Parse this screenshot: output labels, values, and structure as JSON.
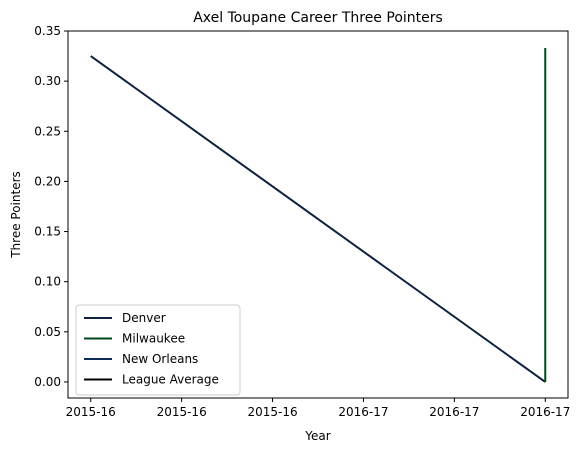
{
  "chart_data": {
    "type": "line",
    "title": "Axel Toupane Career Three Pointers",
    "xlabel": "Year",
    "ylabel": "Three Pointers",
    "x_tick_labels": [
      "2015-16",
      "2015-16",
      "2015-16",
      "2016-17",
      "2016-17",
      "2016-17"
    ],
    "y_ticks": [
      "0.00",
      "0.05",
      "0.10",
      "0.15",
      "0.20",
      "0.25",
      "0.30",
      "0.35"
    ],
    "xlim": [
      -0.05,
      1.05
    ],
    "ylim": [
      -0.016,
      0.35
    ],
    "series": [
      {
        "name": "Denver",
        "color": "#0E2240",
        "x": [
          0,
          1
        ],
        "y": [
          0.325,
          0.0
        ]
      },
      {
        "name": "Milwaukee",
        "color": "#00471B",
        "x": [
          1,
          1
        ],
        "y": [
          0.0,
          0.333
        ]
      },
      {
        "name": "New Orleans",
        "color": "#0C2C56",
        "x": [
          1,
          1
        ],
        "y": [
          0.0,
          0.0
        ]
      },
      {
        "name": "League Average",
        "color": "#000000",
        "x": [],
        "y": []
      }
    ],
    "legend_position": "lower-left",
    "grid": false
  }
}
